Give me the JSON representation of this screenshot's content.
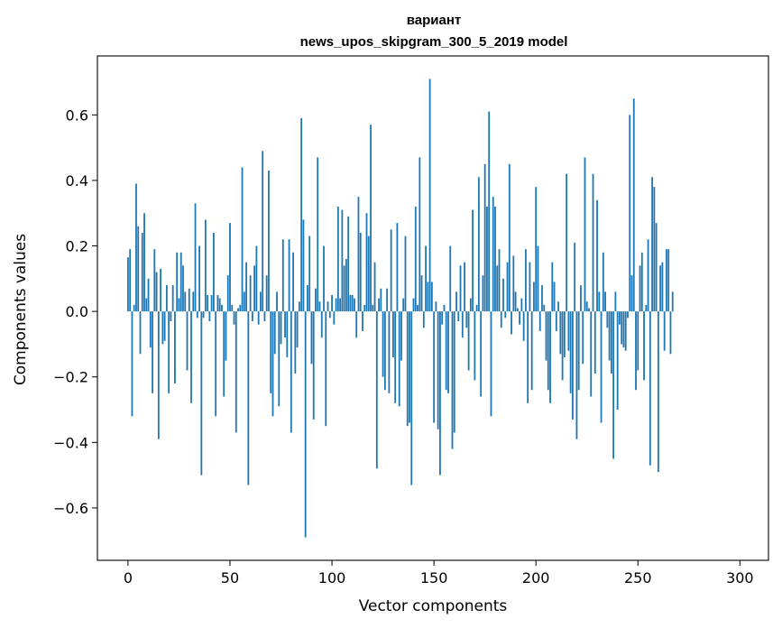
{
  "chart_data": {
    "type": "bar",
    "title_line1": "вариант",
    "title_line2": "news_upos_skipgram_300_5_2019 model",
    "xlabel": "Vector components",
    "ylabel": "Components values",
    "xlim": [
      -15,
      314
    ],
    "ylim": [
      -0.76,
      0.78
    ],
    "xticks": [
      0,
      50,
      100,
      150,
      200,
      250,
      300
    ],
    "xtick_labels": [
      "0",
      "50",
      "100",
      "150",
      "200",
      "250",
      "300"
    ],
    "yticks": [
      -0.6,
      -0.4,
      -0.2,
      0.0,
      0.2,
      0.4,
      0.6
    ],
    "ytick_labels": [
      "−0.6",
      "−0.4",
      "−0.2",
      "0.0",
      "0.2",
      "0.4",
      "0.6"
    ],
    "bar_color": "#1f77b4",
    "grid": false,
    "values": [
      0.165,
      0.19,
      -0.32,
      0.02,
      0.39,
      0.26,
      -0.13,
      0.24,
      0.3,
      0.04,
      0.1,
      -0.11,
      -0.25,
      0.19,
      0.12,
      -0.39,
      0.13,
      -0.1,
      -0.09,
      0.08,
      -0.25,
      -0.03,
      0.08,
      -0.22,
      0.18,
      0.04,
      0.18,
      0.14,
      0.06,
      -0.18,
      0.07,
      -0.28,
      0.06,
      0.33,
      -0.02,
      0.2,
      -0.5,
      -0.02,
      0.28,
      0.05,
      -0.03,
      0.05,
      0.24,
      -0.32,
      0.05,
      0.04,
      0.02,
      -0.26,
      -0.15,
      0.11,
      0.27,
      0.02,
      -0.04,
      -0.37,
      0.01,
      0.02,
      0.44,
      0.06,
      0.15,
      -0.53,
      0.11,
      -0.03,
      0.14,
      0.2,
      -0.04,
      0.06,
      0.49,
      -0.03,
      0.11,
      0.43,
      -0.25,
      -0.32,
      -0.13,
      0.06,
      -0.29,
      -0.1,
      0.22,
      -0.08,
      -0.14,
      0.22,
      -0.37,
      0.18,
      -0.19,
      -0.11,
      0.03,
      0.59,
      0.28,
      -0.69,
      0.08,
      0.23,
      -0.16,
      -0.33,
      0.07,
      0.47,
      0.03,
      -0.08,
      0.2,
      -0.35,
      0.03,
      -0.02,
      0.05,
      -0.04,
      0.04,
      0.32,
      0.04,
      0.31,
      0.14,
      0.16,
      0.29,
      0.05,
      0.05,
      0.04,
      -0.08,
      0.35,
      0.24,
      -0.06,
      0.02,
      0.3,
      0.23,
      0.57,
      0.02,
      0.15,
      -0.48,
      0.04,
      0.07,
      -0.2,
      -0.24,
      0.07,
      -0.25,
      0.25,
      -0.14,
      -0.28,
      0.27,
      -0.29,
      -0.15,
      0.04,
      0.23,
      -0.35,
      -0.34,
      -0.53,
      0.04,
      0.32,
      0.02,
      0.47,
      0.11,
      -0.05,
      0.2,
      0.09,
      0.71,
      0.09,
      -0.34,
      0.03,
      -0.36,
      -0.5,
      -0.04,
      0.02,
      -0.24,
      -0.25,
      0.2,
      -0.42,
      -0.37,
      0.06,
      -0.03,
      0.14,
      -0.08,
      0.15,
      -0.05,
      -0.18,
      0.04,
      0.31,
      -0.21,
      0.02,
      0.41,
      -0.26,
      0.11,
      0.45,
      0.32,
      0.61,
      -0.32,
      0.35,
      0.32,
      0.14,
      0.19,
      -0.05,
      0.1,
      -0.02,
      0.15,
      0.45,
      -0.07,
      0.17,
      0.06,
      0.01,
      -0.04,
      0.04,
      -0.09,
      0.19,
      -0.28,
      0.15,
      -0.24,
      0.09,
      0.38,
      0.2,
      -0.06,
      0.08,
      0.02,
      -0.15,
      -0.24,
      -0.28,
      0.15,
      0.09,
      -0.06,
      0.03,
      -0.13,
      -0.21,
      -0.14,
      0.42,
      -0.12,
      -0.25,
      -0.33,
      0.21,
      -0.39,
      -0.24,
      0.08,
      -0.16,
      0.47,
      0.03,
      0.01,
      -0.26,
      0.42,
      -0.19,
      0.34,
      0.06,
      -0.34,
      0.18,
      0.06,
      -0.05,
      -0.15,
      -0.19,
      -0.45,
      0.06,
      -0.3,
      -0.04,
      -0.1,
      -0.11,
      -0.12,
      -0.02,
      0.6,
      0.11,
      0.65,
      -0.24,
      -0.18,
      0.14,
      0.18,
      -0.21,
      0.02,
      0.22,
      -0.47,
      0.41,
      0.38,
      0.27,
      -0.49,
      0.14,
      0.15,
      -0.12,
      0.19,
      0.19,
      -0.13,
      0.06
    ]
  }
}
